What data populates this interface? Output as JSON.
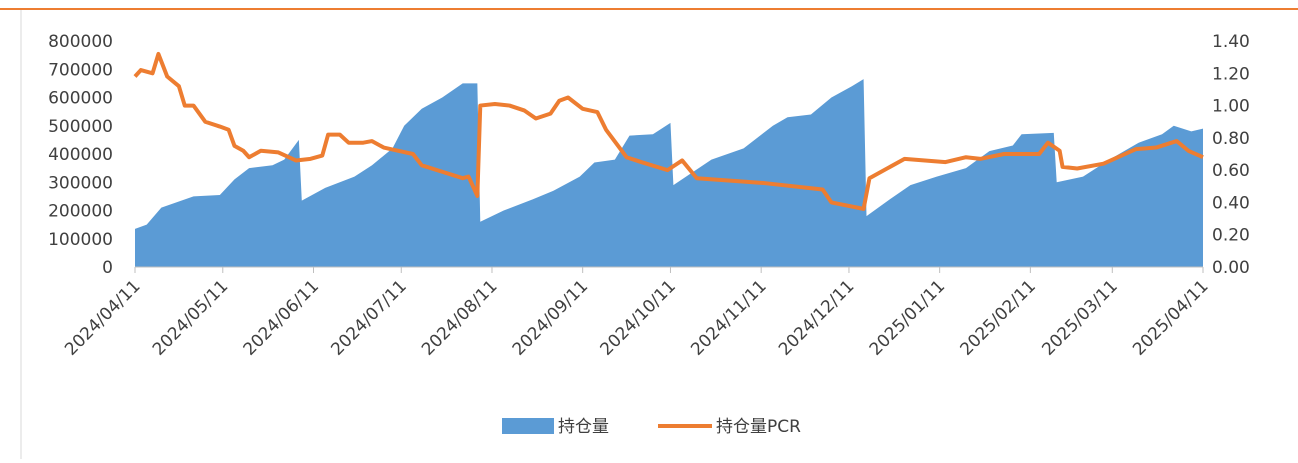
{
  "chart_data": {
    "type": "area-line",
    "xlim": [
      "2024/04/11",
      "2025/04/11"
    ],
    "xticks": [
      "2024/04/11",
      "2024/05/11",
      "2024/06/11",
      "2024/07/11",
      "2024/08/11",
      "2024/09/11",
      "2024/10/11",
      "2024/11/11",
      "2024/12/11",
      "2025/01/11",
      "2025/02/11",
      "2025/03/11",
      "2025/04/11"
    ],
    "ylim": [
      0,
      800000
    ],
    "yticks": [
      0,
      100000,
      200000,
      300000,
      400000,
      500000,
      600000,
      700000,
      800000
    ],
    "y2lim": [
      0,
      1.4
    ],
    "y2ticks": [
      {
        "value": 0,
        "label": "0.00"
      },
      {
        "value": 0.2,
        "label": "0.20"
      },
      {
        "value": 0.4,
        "label": "0.40"
      },
      {
        "value": 0.6,
        "label": "0.60"
      },
      {
        "value": 0.8,
        "label": "0.80"
      },
      {
        "value": 1,
        "label": "1.00"
      },
      {
        "value": 1.2,
        "label": "1.20"
      },
      {
        "value": 1.4,
        "label": "1.40"
      }
    ],
    "legend": "bottom",
    "series": [
      {
        "name": "持仓量",
        "color": "#5b9bd5",
        "kind": "area",
        "x": [
          "2024/04/11",
          "2024/04/15",
          "2024/04/20",
          "2024/05/01",
          "2024/05/10",
          "2024/05/15",
          "2024/05/20",
          "2024/05/28",
          "2024/06/01",
          "2024/06/06",
          "2024/06/07",
          "2024/06/15",
          "2024/06/25",
          "2024/07/01",
          "2024/07/08",
          "2024/07/12",
          "2024/07/18",
          "2024/07/25",
          "2024/08/01",
          "2024/08/06",
          "2024/08/07",
          "2024/08/15",
          "2024/08/25",
          "2024/09/01",
          "2024/09/10",
          "2024/09/15",
          "2024/09/22",
          "2024/09/27",
          "2024/10/05",
          "2024/10/11",
          "2024/10/12",
          "2024/10/25",
          "2024/11/05",
          "2024/11/15",
          "2024/11/20",
          "2024/11/28",
          "2024/12/05",
          "2024/12/12",
          "2024/12/16",
          "2024/12/17",
          "2024/12/25",
          "2025/01/01",
          "2025/01/10",
          "2025/01/20",
          "2025/01/28",
          "2025/02/05",
          "2025/02/08",
          "2025/02/19",
          "2025/02/20",
          "2025/03/01",
          "2025/03/10",
          "2025/03/20",
          "2025/03/28",
          "2025/04/01",
          "2025/04/07",
          "2025/04/11"
        ],
        "values": [
          135000,
          150000,
          210000,
          250000,
          255000,
          310000,
          350000,
          360000,
          380000,
          450000,
          235000,
          280000,
          320000,
          360000,
          420000,
          500000,
          560000,
          600000,
          650000,
          650000,
          160000,
          200000,
          240000,
          270000,
          320000,
          370000,
          380000,
          465000,
          470000,
          510000,
          290000,
          380000,
          420000,
          500000,
          530000,
          540000,
          600000,
          640000,
          665000,
          180000,
          240000,
          290000,
          320000,
          350000,
          410000,
          430000,
          470000,
          475000,
          300000,
          320000,
          380000,
          440000,
          470000,
          500000,
          480000,
          490000
        ]
      },
      {
        "name": "持仓量PCR",
        "color": "#ed7d31",
        "kind": "line",
        "axis": "y2",
        "x": [
          "2024/04/11",
          "2024/04/13",
          "2024/04/17",
          "2024/04/19",
          "2024/04/22",
          "2024/04/26",
          "2024/04/28",
          "2024/05/01",
          "2024/05/05",
          "2024/05/10",
          "2024/05/13",
          "2024/05/15",
          "2024/05/18",
          "2024/05/20",
          "2024/05/24",
          "2024/05/30",
          "2024/06/05",
          "2024/06/10",
          "2024/06/14",
          "2024/06/16",
          "2024/06/20",
          "2024/06/23",
          "2024/06/28",
          "2024/07/01",
          "2024/07/05",
          "2024/07/10",
          "2024/07/15",
          "2024/07/18",
          "2024/07/25",
          "2024/08/01",
          "2024/08/03",
          "2024/08/06",
          "2024/08/07",
          "2024/08/12",
          "2024/08/17",
          "2024/08/22",
          "2024/08/26",
          "2024/08/31",
          "2024/09/03",
          "2024/09/06",
          "2024/09/11",
          "2024/09/16",
          "2024/09/19",
          "2024/09/26",
          "2024/10/01",
          "2024/10/10",
          "2024/10/15",
          "2024/10/20",
          "2024/11/12",
          "2024/12/02",
          "2024/12/05",
          "2024/12/16",
          "2024/12/18",
          "2024/12/30",
          "2025/01/13",
          "2025/01/20",
          "2025/01/25",
          "2025/02/02",
          "2025/02/14",
          "2025/02/17",
          "2025/02/21",
          "2025/02/22",
          "2025/02/27",
          "2025/03/08",
          "2025/03/19",
          "2025/03/26",
          "2025/04/02",
          "2025/04/06",
          "2025/04/11"
        ],
        "values": [
          1.18,
          1.22,
          1.2,
          1.32,
          1.18,
          1.12,
          1.0,
          1.0,
          0.9,
          0.87,
          0.85,
          0.75,
          0.72,
          0.68,
          0.72,
          0.71,
          0.66,
          0.67,
          0.69,
          0.82,
          0.82,
          0.77,
          0.77,
          0.78,
          0.74,
          0.72,
          0.7,
          0.63,
          0.59,
          0.55,
          0.56,
          0.44,
          1.0,
          1.01,
          1.0,
          0.97,
          0.92,
          0.95,
          1.03,
          1.05,
          0.98,
          0.96,
          0.85,
          0.68,
          0.65,
          0.6,
          0.66,
          0.55,
          0.52,
          0.48,
          0.4,
          0.36,
          0.55,
          0.67,
          0.65,
          0.68,
          0.67,
          0.7,
          0.7,
          0.77,
          0.72,
          0.62,
          0.61,
          0.64,
          0.73,
          0.74,
          0.78,
          0.72,
          0.68
        ]
      }
    ]
  }
}
